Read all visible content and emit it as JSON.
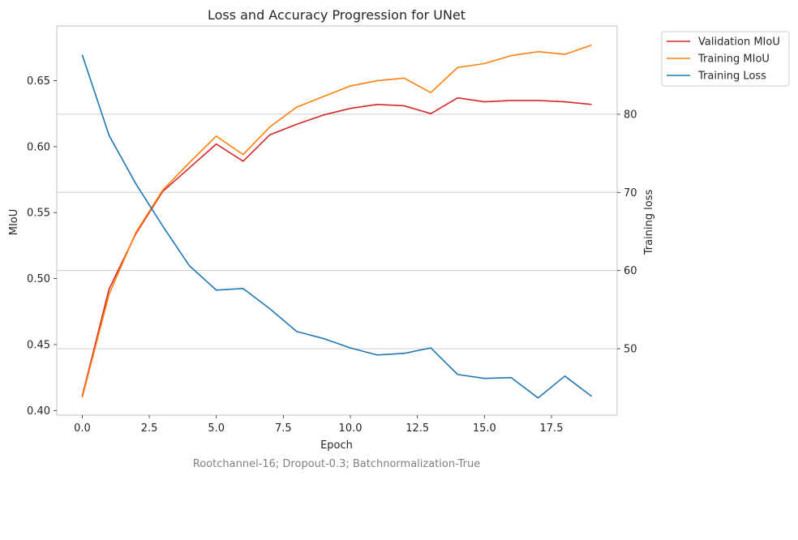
{
  "chart_data": {
    "type": "line",
    "title": "Loss and Accuracy Progression for UNet",
    "subtitle": "Rootchannel-16; Dropout-0.3; Batchnormalization-True",
    "xlabel": "Epoch",
    "ylabel_left": "MIoU",
    "ylabel_right": "Training loss",
    "xlim": [
      -0.95,
      19.95
    ],
    "ylim_left": [
      0.3965,
      0.6915
    ],
    "ylim_right": [
      41.5,
      91.3
    ],
    "x_ticks": [
      0.0,
      2.5,
      5.0,
      7.5,
      10.0,
      12.5,
      15.0,
      17.5
    ],
    "x_tick_labels": [
      "0.0",
      "2.5",
      "5.0",
      "7.5",
      "10.0",
      "12.5",
      "15.0",
      "17.5"
    ],
    "y_left_ticks": [
      0.4,
      0.45,
      0.5,
      0.55,
      0.6,
      0.65
    ],
    "y_left_tick_labels": [
      "0.40",
      "0.45",
      "0.50",
      "0.55",
      "0.60",
      "0.65"
    ],
    "y_right_ticks": [
      50,
      60,
      70,
      80
    ],
    "y_right_tick_labels": [
      "50",
      "60",
      "70",
      "80"
    ],
    "grid": "horizontal lines at right-axis ticks",
    "legend_position": "outside top-right",
    "x": [
      0,
      1,
      2,
      3,
      4,
      5,
      6,
      7,
      8,
      9,
      10,
      11,
      12,
      13,
      14,
      15,
      16,
      17,
      18,
      19
    ],
    "series": [
      {
        "name": "Validation MIoU",
        "axis": "left",
        "color": "#d62728",
        "values": [
          0.411,
          0.492,
          0.534,
          0.566,
          0.584,
          0.602,
          0.589,
          0.609,
          0.617,
          0.624,
          0.629,
          0.632,
          0.631,
          0.625,
          0.637,
          0.634,
          0.635,
          0.635,
          0.634,
          0.632
        ]
      },
      {
        "name": "Training MIoU",
        "axis": "left",
        "color": "#ff7f0e",
        "values": [
          0.41,
          0.488,
          0.535,
          0.567,
          0.588,
          0.608,
          0.594,
          0.615,
          0.63,
          0.638,
          0.646,
          0.65,
          0.652,
          0.641,
          0.66,
          0.663,
          0.669,
          0.672,
          0.67,
          0.677
        ]
      },
      {
        "name": "Training Loss",
        "axis": "right",
        "color": "#1f77b4",
        "values": [
          87.6,
          77.3,
          71.1,
          65.7,
          60.6,
          57.5,
          57.7,
          55.1,
          52.2,
          51.3,
          50.1,
          49.2,
          49.4,
          50.1,
          46.7,
          46.2,
          46.3,
          43.7,
          46.5,
          43.9
        ]
      }
    ]
  }
}
